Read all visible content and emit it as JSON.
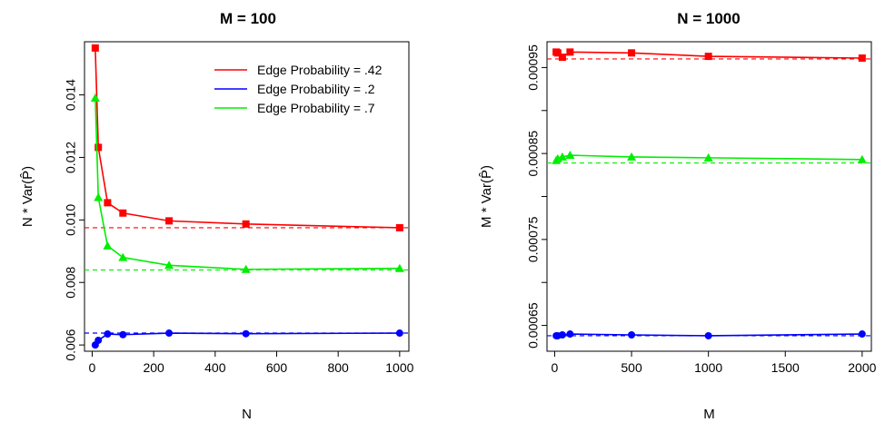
{
  "chart_data": [
    {
      "type": "line",
      "title": "M = 100",
      "xlabel": "N",
      "ylabel": "N * Var(P̂)",
      "xlim": [
        -25,
        1030
      ],
      "ylim": [
        0.0058,
        0.0157
      ],
      "xticks": [
        0,
        200,
        400,
        600,
        800,
        1000
      ],
      "yticks": [
        0.006,
        0.008,
        0.01,
        0.012,
        0.014
      ],
      "ytick_labels": [
        "0.006",
        "0.008",
        "0.010",
        "0.012",
        "0.014"
      ],
      "legend_position": "top-right",
      "x": [
        10,
        20,
        50,
        100,
        250,
        500,
        1000
      ],
      "series": [
        {
          "name": "Edge Probability = .42",
          "color": "#ff0000",
          "marker": "square",
          "values": [
            0.0155,
            0.01232,
            0.01055,
            0.01022,
            0.00997,
            0.00987,
            0.00975
          ],
          "reference": 0.00975
        },
        {
          "name": "Edge Probability = .2",
          "color": "#0000ff",
          "marker": "circle",
          "values": [
            0.006,
            0.00615,
            0.00635,
            0.00633,
            0.00638,
            0.00636,
            0.00638
          ],
          "reference": 0.00638
        },
        {
          "name": "Edge Probability = .7",
          "color": "#00ee00",
          "marker": "triangle",
          "values": [
            0.0139,
            0.01072,
            0.00917,
            0.0088,
            0.00855,
            0.00842,
            0.00845
          ],
          "reference": 0.0084
        }
      ]
    },
    {
      "type": "line",
      "title": "N = 1000",
      "xlabel": "M",
      "ylabel": "M * Var(P̂)",
      "xlim": [
        -50,
        2060
      ],
      "ylim": [
        0.00062,
        0.00098
      ],
      "xticks": [
        0,
        500,
        1000,
        1500,
        2000
      ],
      "yticks": [
        0.00065,
        0.00075,
        0.00085,
        0.00095
      ],
      "ytick_labels": [
        "0.00065",
        "0.00075",
        "0.00085",
        "0.00095"
      ],
      "x": [
        10,
        20,
        50,
        100,
        500,
        1000,
        2000
      ],
      "series": [
        {
          "name": "Edge Probability = .42",
          "color": "#ff0000",
          "marker": "square",
          "values": [
            0.000968,
            0.000967,
            0.000962,
            0.000968,
            0.000967,
            0.000963,
            0.000961
          ],
          "reference": 0.00096
        },
        {
          "name": "Edge Probability = .2",
          "color": "#0000ff",
          "marker": "circle",
          "values": [
            0.000638,
            0.000638,
            0.000639,
            0.00064,
            0.000639,
            0.000638,
            0.00064
          ],
          "reference": 0.000638
        },
        {
          "name": "Edge Probability = .7",
          "color": "#00ee00",
          "marker": "triangle",
          "values": [
            0.000842,
            0.000844,
            0.000846,
            0.000848,
            0.000846,
            0.000845,
            0.000843
          ],
          "reference": 0.000839
        }
      ]
    }
  ]
}
